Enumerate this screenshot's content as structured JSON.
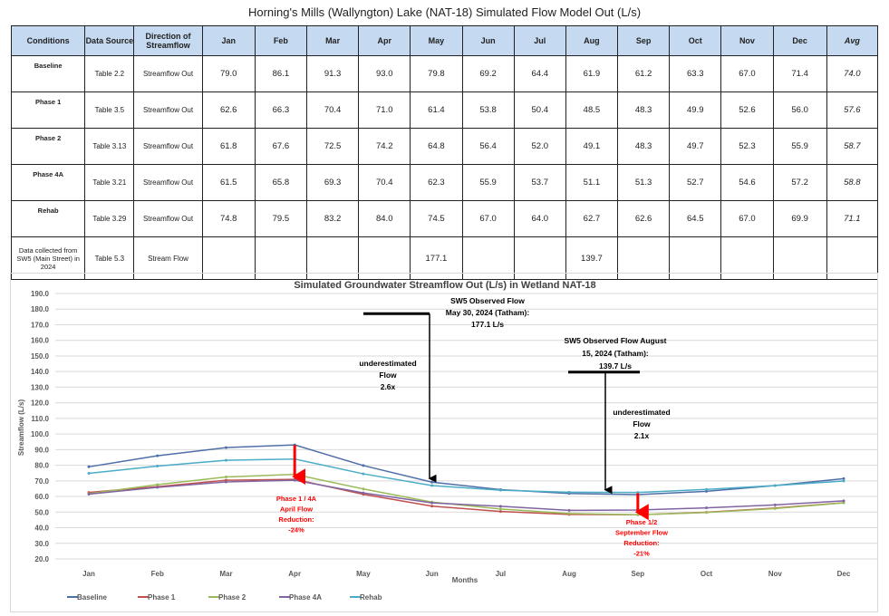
{
  "table": {
    "title": "Horning's Mills (Wallyngton) Lake (NAT-18) Simulated Flow Model Out (L/s)",
    "headers": [
      "Conditions",
      "Data Source",
      "Direction of Streamflow",
      "Jan",
      "Feb",
      "Mar",
      "Apr",
      "May",
      "Jun",
      "Jul",
      "Aug",
      "Sep",
      "Oct",
      "Nov",
      "Dec",
      "Avg"
    ],
    "rows": [
      [
        "Baseline",
        "Table 2.2",
        "Streamflow Out",
        "79.0",
        "86.1",
        "91.3",
        "93.0",
        "79.8",
        "69.2",
        "64.4",
        "61.9",
        "61.2",
        "63.3",
        "67.0",
        "71.4",
        "74.0"
      ],
      [
        "Phase 1",
        "Table 3.5",
        "Streamflow Out",
        "62.6",
        "66.3",
        "70.4",
        "71.0",
        "61.4",
        "53.8",
        "50.4",
        "48.5",
        "48.3",
        "49.9",
        "52.6",
        "56.0",
        "57.6"
      ],
      [
        "Phase 2",
        "Table 3.13",
        "Streamflow Out",
        "61.8",
        "67.6",
        "72.5",
        "74.2",
        "64.8",
        "56.4",
        "52.0",
        "49.1",
        "48.3",
        "49.7",
        "52.3",
        "55.9",
        "58.7"
      ],
      [
        "Phase 4A",
        "Table 3.21",
        "Streamflow Out",
        "61.5",
        "65.8",
        "69.3",
        "70.4",
        "62.3",
        "55.9",
        "53.7",
        "51.1",
        "51.3",
        "52.7",
        "54.6",
        "57.2",
        "58.8"
      ],
      [
        "Rehab",
        "Table 3.29",
        "Streamflow Out",
        "74.8",
        "79.5",
        "83.2",
        "84.0",
        "74.5",
        "67.0",
        "64.0",
        "62.7",
        "62.6",
        "64.5",
        "67.0",
        "69.9",
        "71.1"
      ],
      [
        "Data collected from SW5 (Main Street) in 2024",
        "Table 5.3",
        "Stream Flow",
        "",
        "",
        "",
        "",
        "177.1",
        "",
        "",
        "139.7",
        "",
        "",
        "",
        "",
        ""
      ]
    ]
  },
  "chart_data": {
    "type": "line",
    "title": "Simulated Groundwater Streamflow Out (L/s) in Wetland NAT-18",
    "xlabel": "Months",
    "ylabel": "Streamflow (L/s)",
    "ylim": [
      20,
      190
    ],
    "ytick_step": 10,
    "yticks": [
      "190.0",
      "180.0",
      "170.0",
      "160.0",
      "150.0",
      "140.0",
      "130.0",
      "120.0",
      "110.0",
      "100.0",
      "90.0",
      "80.0",
      "70.0",
      "60.0",
      "50.0",
      "40.0",
      "30.0",
      "20.0"
    ],
    "grid": true,
    "legend_position": "bottom-left",
    "categories": [
      "Jan",
      "Feb",
      "Mar",
      "Apr",
      "May",
      "Jun",
      "Jul",
      "Aug",
      "Sep",
      "Oct",
      "Nov",
      "Dec"
    ],
    "series": [
      {
        "name": "Baseline",
        "color": "#4f6fa8",
        "values": [
          79.0,
          86.1,
          91.3,
          93.0,
          79.8,
          69.2,
          64.4,
          61.9,
          61.2,
          63.3,
          67.0,
          71.4
        ]
      },
      {
        "name": "Phase 1",
        "color": "#c0504d",
        "values": [
          62.6,
          66.3,
          70.4,
          71.0,
          61.4,
          53.8,
          50.4,
          48.5,
          48.3,
          49.9,
          52.6,
          56.0
        ]
      },
      {
        "name": "Phase 2",
        "color": "#9bbb59",
        "values": [
          61.8,
          67.6,
          72.5,
          74.2,
          64.8,
          56.4,
          52.0,
          49.1,
          48.3,
          49.7,
          52.3,
          55.9
        ]
      },
      {
        "name": "Phase 4A",
        "color": "#8064a2",
        "values": [
          61.5,
          65.8,
          69.3,
          70.4,
          62.3,
          55.9,
          53.7,
          51.1,
          51.3,
          52.7,
          54.6,
          57.2
        ]
      },
      {
        "name": "Rehab",
        "color": "#4bacc6",
        "values": [
          74.8,
          79.5,
          83.2,
          84.0,
          74.5,
          67.0,
          64.0,
          62.7,
          62.6,
          64.5,
          67.0,
          69.9
        ]
      }
    ],
    "annotations": [
      {
        "id": "may-obs",
        "lines": [
          "SW5 Observed Flow",
          "May 30, 2024 (Tatham):",
          "177.1 L/s"
        ],
        "value": 177.1,
        "month": "May"
      },
      {
        "id": "may-under",
        "lines": [
          "underestimated",
          "Flow",
          "2.6x"
        ]
      },
      {
        "id": "aug-obs",
        "lines": [
          "SW5 Observed Flow August",
          "15, 2024 (Tatham):",
          "139.7 L/s"
        ],
        "value": 139.7,
        "month": "Aug"
      },
      {
        "id": "aug-under",
        "lines": [
          "underestimated",
          "Flow",
          "2.1x"
        ]
      },
      {
        "id": "apr-red",
        "lines": [
          "Phase 1 / 4A",
          "April Flow",
          "Reduction:",
          "-24%"
        ],
        "color": "#ff0000"
      },
      {
        "id": "sep-red",
        "lines": [
          "Phase 1/2",
          "September Flow",
          "Reduction:",
          "-21%"
        ],
        "color": "#ff0000"
      }
    ]
  }
}
